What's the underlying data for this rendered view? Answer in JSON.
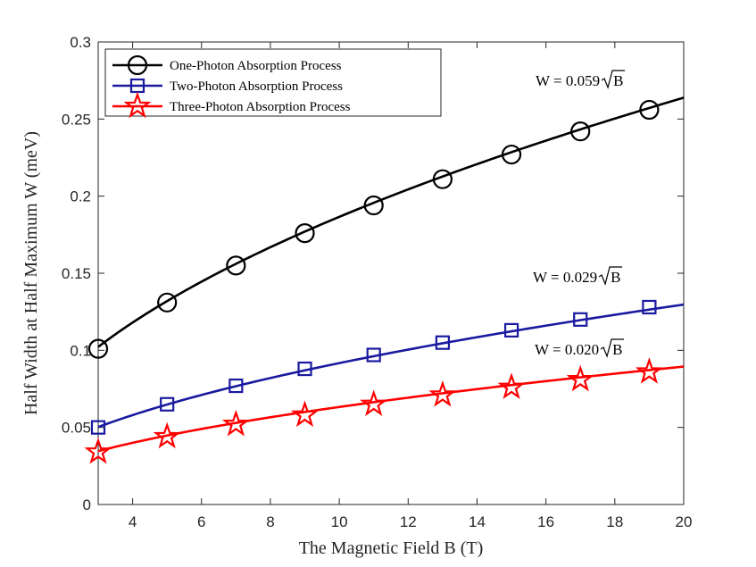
{
  "chart_data": {
    "type": "line",
    "title": "",
    "xlabel": "The Magnetic Field B (T)",
    "ylabel": "Half Width at Half Maximum W (meV)",
    "xlim": [
      3,
      20
    ],
    "ylim": [
      0,
      0.3
    ],
    "xticks": [
      4,
      6,
      8,
      10,
      12,
      14,
      16,
      18,
      20
    ],
    "yticks": [
      0,
      0.05,
      0.1,
      0.15,
      0.2,
      0.25,
      0.3
    ],
    "ytick_labels": [
      "0",
      "0.05",
      "0.1",
      "0.15",
      "0.2",
      "0.25",
      "0.3"
    ],
    "grid": false,
    "legend_position": "top-left",
    "series": [
      {
        "name": "One-Photon Absorption Process",
        "color": "#000000",
        "marker": "circle",
        "x": [
          3,
          5,
          7,
          9,
          11,
          13,
          15,
          17,
          19
        ],
        "y": [
          0.101,
          0.131,
          0.155,
          0.176,
          0.194,
          0.211,
          0.227,
          0.242,
          0.256
        ],
        "curve": {
          "coef": 0.059,
          "x": [
            3,
            20
          ]
        }
      },
      {
        "name": "Two-Photon Absorption Process",
        "color": "#1a1aa0",
        "marker": "square",
        "x": [
          3,
          5,
          7,
          9,
          11,
          13,
          15,
          17,
          19
        ],
        "y": [
          0.05,
          0.065,
          0.077,
          0.088,
          0.097,
          0.105,
          0.113,
          0.12,
          0.128
        ],
        "curve": {
          "coef": 0.029,
          "x": [
            3,
            20
          ]
        }
      },
      {
        "name": "Three-Photon Absorption Process",
        "color": "#ff0000",
        "marker": "star",
        "x": [
          3,
          5,
          7,
          9,
          11,
          13,
          15,
          17,
          19
        ],
        "y": [
          0.034,
          0.044,
          0.052,
          0.058,
          0.065,
          0.071,
          0.076,
          0.081,
          0.086
        ],
        "curve": {
          "coef": 0.02,
          "x": [
            3,
            20
          ]
        }
      }
    ],
    "annotations": [
      {
        "prefix": "W = 0.059",
        "radicand": "B",
        "series": 0
      },
      {
        "prefix": "W = 0.029",
        "radicand": "B",
        "series": 1
      },
      {
        "prefix": "W = 0.020",
        "radicand": "B",
        "series": 2
      }
    ]
  }
}
